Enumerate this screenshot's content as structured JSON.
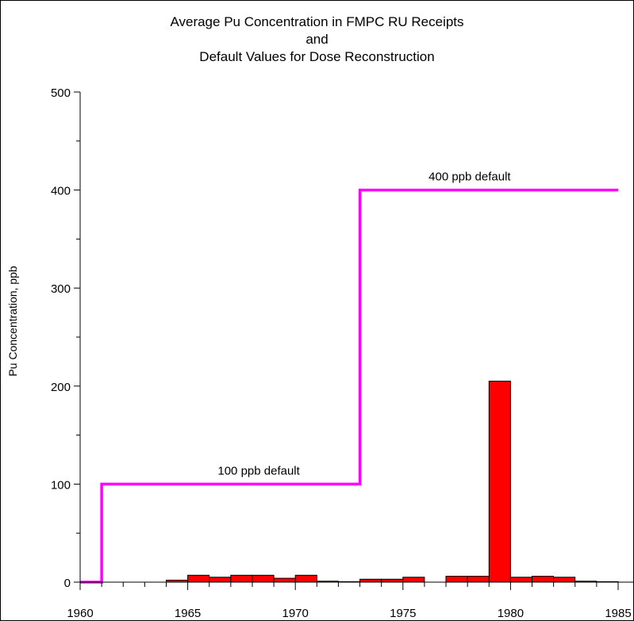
{
  "chart_data": {
    "type": "bar",
    "title_lines": [
      "Average Pu Concentration in FMPC RU Receipts",
      "and",
      "Default Values for Dose Reconstruction"
    ],
    "xlabel": "",
    "ylabel": "Pu Concentration, ppb",
    "xlim": [
      1960,
      1985
    ],
    "ylim": [
      0,
      500
    ],
    "x_ticks": [
      "1960",
      "1965",
      "1970",
      "1975",
      "1980",
      "1985"
    ],
    "y_ticks": [
      "0",
      "100",
      "200",
      "300",
      "400",
      "500"
    ],
    "bars": {
      "bin_width_years": 1,
      "color": "#ff0000",
      "years": [
        1960,
        1961,
        1962,
        1963,
        1964,
        1965,
        1966,
        1967,
        1968,
        1969,
        1970,
        1971,
        1972,
        1973,
        1974,
        1975,
        1976,
        1977,
        1978,
        1979,
        1980,
        1981,
        1982,
        1983,
        1984
      ],
      "values": [
        0,
        0,
        0,
        0,
        2,
        7,
        5,
        7,
        7,
        4,
        7,
        1,
        0.5,
        3,
        3,
        5,
        0,
        6,
        6,
        205,
        5,
        6,
        5,
        1,
        0.5
      ]
    },
    "default_line": {
      "color": "#ff00ff",
      "points": [
        [
          1960,
          0
        ],
        [
          1961,
          0
        ],
        [
          1961,
          100
        ],
        [
          1973,
          100
        ],
        [
          1973,
          400
        ],
        [
          1985,
          400
        ]
      ]
    },
    "annotations": [
      {
        "text": "100 ppb default",
        "x": 1968.3,
        "y": 100
      },
      {
        "text": "400 ppb default",
        "x": 1978.1,
        "y": 400
      }
    ]
  }
}
